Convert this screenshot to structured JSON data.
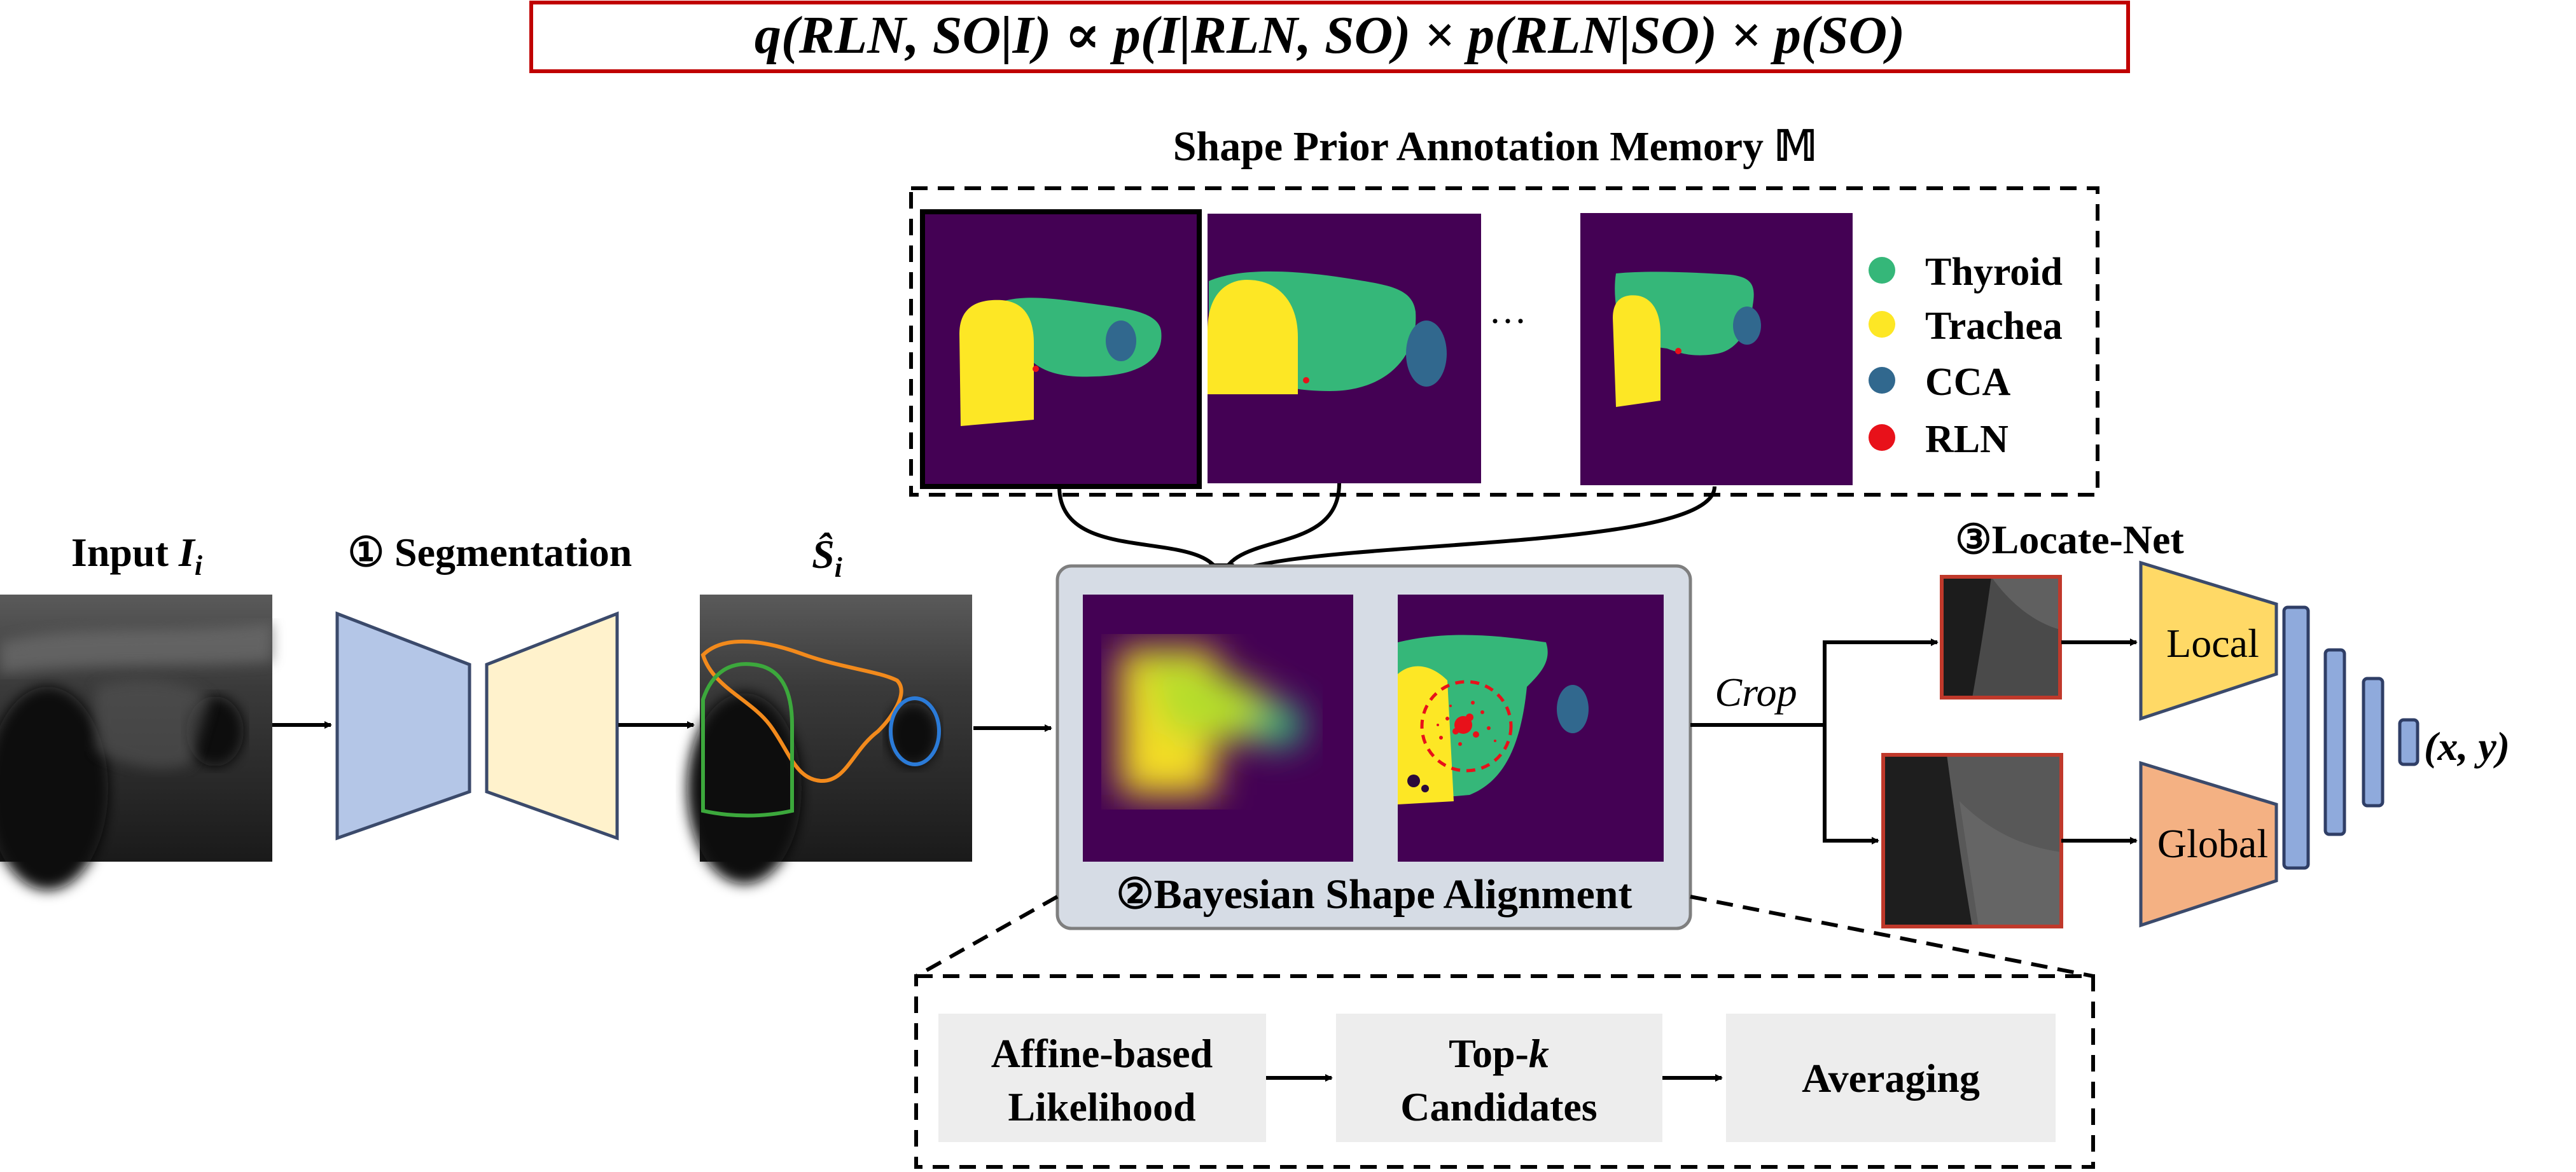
{
  "equation": "q(RLN, SO|I) ∝ p(I|RLN, SO) × p(RLN|SO) × p(SO)",
  "memory": {
    "title": "Shape Prior Annotation Memory 𝕄",
    "ellipsis": "···"
  },
  "legend": [
    {
      "label": "Thyroid",
      "color": "#35b779"
    },
    {
      "label": "Trachea",
      "color": "#fde725"
    },
    {
      "label": "CCA",
      "color": "#31688e"
    },
    {
      "label": "RLN",
      "color": "#e8111a"
    }
  ],
  "input": {
    "label": "Input ",
    "symbol": "I",
    "subscript": "i"
  },
  "segmentation": {
    "label": "① Segmentation"
  },
  "seg_output": {
    "symbol": "Ŝ",
    "subscript": "i"
  },
  "bayesian": {
    "label": "②Bayesian Shape Alignment"
  },
  "crop_label": "Crop",
  "locate_net": {
    "title": "③Locate-Net",
    "local_label": "Local",
    "global_label": "Global",
    "output": "(x, y)"
  },
  "pipeline": {
    "step1_line1": "Affine-based",
    "step1_line2": "Likelihood",
    "step2_line1_prefix": "Top-",
    "step2_line1_k": "k",
    "step2_line2": "Candidates",
    "step3": "Averaging"
  },
  "colors": {
    "viridis_bg": "#440154",
    "thyroid": "#35b779",
    "trachea": "#fde725",
    "cca": "#31688e",
    "rln": "#e8111a",
    "encoder": "#b4c6e7",
    "decoder": "#fff2cc",
    "local": "#ffd966",
    "global": "#f4b183",
    "fc": "#8faadc",
    "equation_border": "#c00000",
    "bayes_panel": "#d6dce5",
    "pipeline_box": "#ededed"
  }
}
